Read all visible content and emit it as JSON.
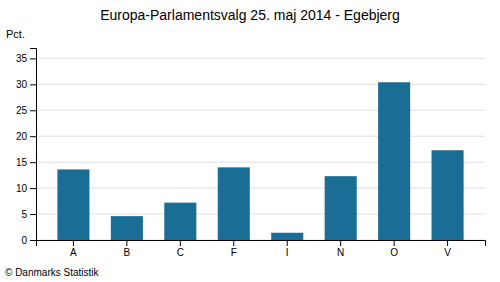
{
  "chart_data": {
    "type": "bar",
    "title": "Europa-Parlamentsvalg 25. maj 2014 - Egebjerg",
    "ylabel": "Pct.",
    "annotations": [
      "© Danmarks Statistik"
    ],
    "categories": [
      "A",
      "B",
      "C",
      "F",
      "I",
      "N",
      "O",
      "V"
    ],
    "values": [
      13.6,
      4.6,
      7.2,
      14.0,
      1.4,
      12.3,
      30.4,
      17.3
    ],
    "color": "#1a6e96",
    "ylim": [
      0,
      37
    ],
    "yticks": [
      0,
      5,
      10,
      15,
      20,
      25,
      30,
      35
    ],
    "grid": true
  }
}
